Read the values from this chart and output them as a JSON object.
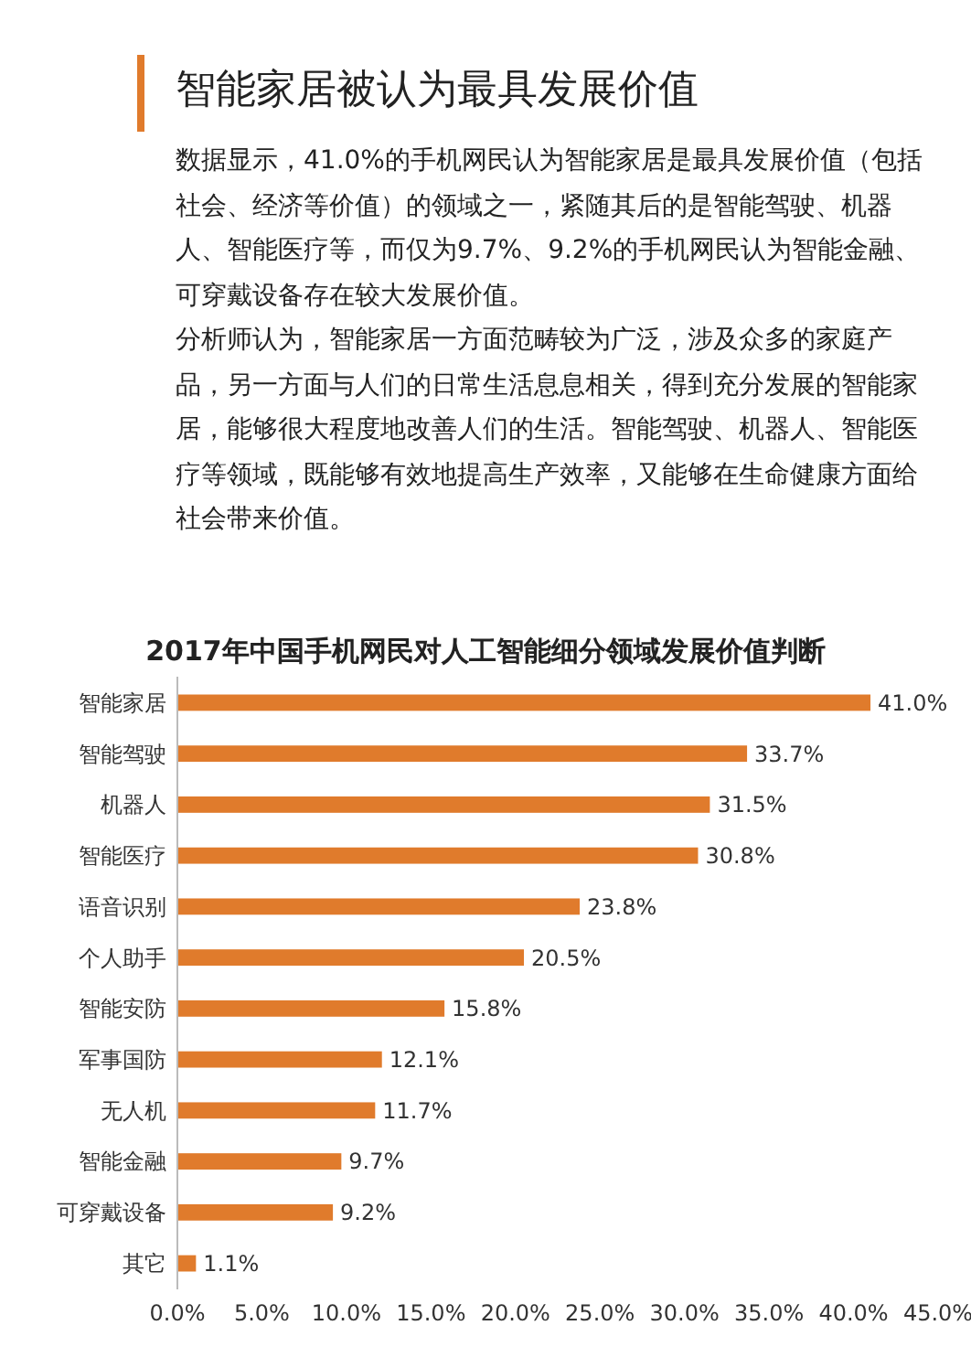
{
  "chart_data": {
    "type": "bar",
    "orientation": "horizontal",
    "title": "2017年中国手机网民对人工智能细分领域发展价值判断",
    "subtitle": "智能家居被认为最具发展价值",
    "annotations": [
      "数据显示，41.0%的手机网民认为智能家居是最具发展价值（包括社会、经济等价值）的领域之一，紧随其后的是智能驾驶、机器人、智能医疗等，而仅为9.7%、9.2%的手机网民认为智能金融、可穿戴设备存在较大发展价值。",
      "分析师认为，智能家居一方面范畴较为广泛，涉及众多的家庭产品，另一方面与人们的日常生活息息相关，得到充分发展的智能家居，能够很大程度地改善人们的生活。智能驾驶、机器人、智能医疗等领域，既能够有效地提高生产效率，又能够在生命健康方面给社会带来价值。"
    ],
    "categories": [
      "智能家居",
      "智能驾驶",
      "机器人",
      "智能医疗",
      "语音识别",
      "个人助手",
      "智能安防",
      "军事国防",
      "无人机",
      "智能金融",
      "可穿戴设备",
      "其它"
    ],
    "values": [
      41.0,
      33.7,
      31.5,
      30.8,
      23.8,
      20.5,
      15.8,
      12.1,
      11.7,
      9.7,
      9.2,
      1.1
    ],
    "value_labels": [
      "41.0%",
      "33.7%",
      "31.5%",
      "30.8%",
      "23.8%",
      "20.5%",
      "15.8%",
      "12.1%",
      "11.7%",
      "9.7%",
      "9.2%",
      "1.1%"
    ],
    "color": "#e07b2c",
    "xlim": [
      0,
      45
    ],
    "xticks": [
      {
        "value": 0,
        "label": "0.0%"
      },
      {
        "value": 5,
        "label": "5.0%"
      },
      {
        "value": 10,
        "label": "10.0%"
      },
      {
        "value": 15,
        "label": "15.0%"
      },
      {
        "value": 20,
        "label": "20.0%"
      },
      {
        "value": 25,
        "label": "25.0%"
      },
      {
        "value": 30,
        "label": "30.0%"
      },
      {
        "value": 35,
        "label": "35.0%"
      },
      {
        "value": 40,
        "label": "40.0%"
      },
      {
        "value": 45,
        "label": "45.0%"
      }
    ]
  }
}
